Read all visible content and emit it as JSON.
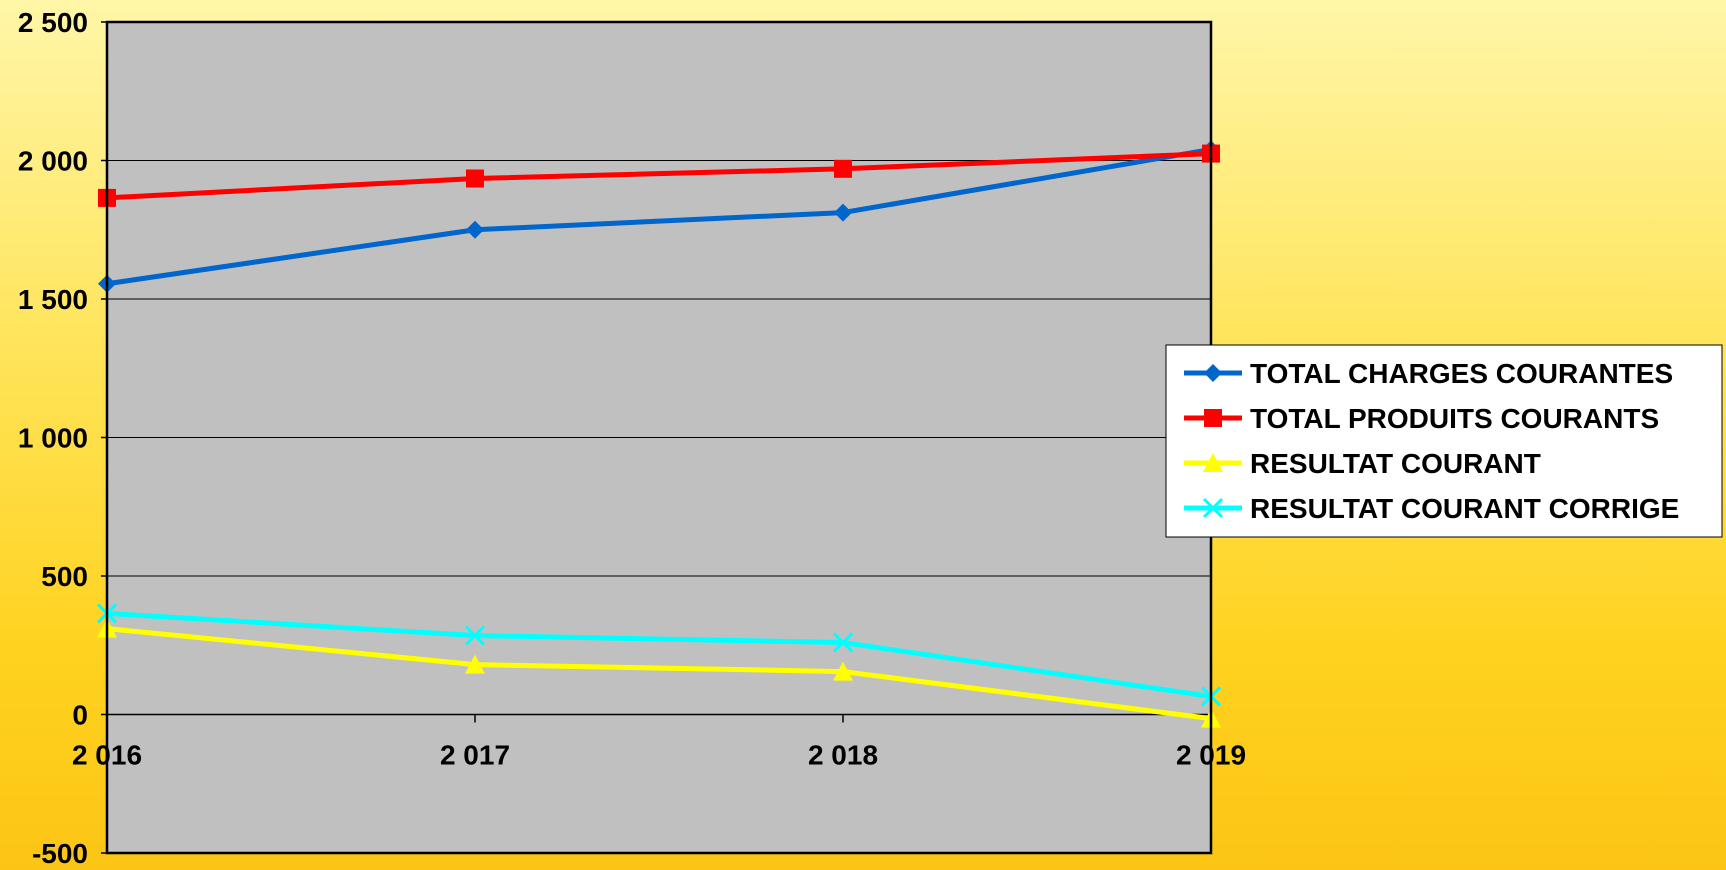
{
  "chart_data": {
    "type": "line",
    "categories": [
      "2 016",
      "2 017",
      "2 018",
      "2 019"
    ],
    "ylim": [
      -500,
      2500
    ],
    "yticks": [
      -500,
      0,
      500,
      1000,
      1500,
      2000,
      2500
    ],
    "ytick_labels": [
      "-500",
      "0",
      "500",
      "1 000",
      "1 500",
      "2 000",
      "2 500"
    ],
    "grid": true,
    "legend_position": "right",
    "plot_background": "#c0c0c0",
    "series": [
      {
        "name": "TOTAL CHARGES COURANTES",
        "values": [
          1555,
          1750,
          1812,
          2040
        ],
        "color": "#0066cc",
        "marker": "diamond"
      },
      {
        "name": "TOTAL PRODUITS COURANTS",
        "values": [
          1865,
          1935,
          1970,
          2025
        ],
        "color": "#ff0000",
        "marker": "square"
      },
      {
        "name": "RESULTAT COURANT",
        "values": [
          310,
          180,
          155,
          -15
        ],
        "color": "#ffff00",
        "marker": "triangle"
      },
      {
        "name": "RESULTAT COURANT CORRIGE",
        "values": [
          365,
          285,
          260,
          65
        ],
        "color": "#00ffff",
        "marker": "x"
      }
    ]
  }
}
